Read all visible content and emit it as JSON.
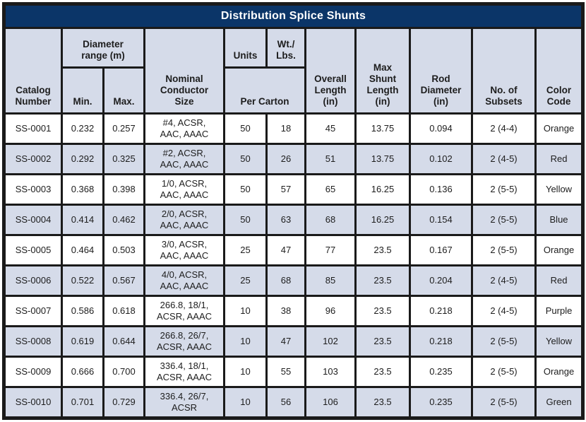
{
  "title": "Distribution Splice Shunts",
  "header": {
    "catalog": "Catalog\nNumber",
    "diameter_range": "Diameter\nrange (m)",
    "min": "Min.",
    "max": "Max.",
    "nominal": "Nominal\nConductor\nSize",
    "units": "Units",
    "wt": "Wt./\nLbs.",
    "per_carton": "Per Carton",
    "overall": "Overall\nLength\n(in)",
    "max_shunt": "Max\nShunt\nLength\n(in)",
    "rod": "Rod\nDiameter\n(in)",
    "subsets": "No. of\nSubsets",
    "color": "Color\nCode"
  },
  "column_keys": [
    "catalog",
    "min",
    "max",
    "conductor",
    "units",
    "wt",
    "overall",
    "max_shunt",
    "rod",
    "subsets",
    "color"
  ],
  "rows": [
    {
      "catalog": "SS-0001",
      "min": "0.232",
      "max": "0.257",
      "conductor": "#4, ACSR,\nAAC, AAAC",
      "units": "50",
      "wt": "18",
      "overall": "45",
      "max_shunt": "13.75",
      "rod": "0.094",
      "subsets": "2 (4-4)",
      "color": "Orange"
    },
    {
      "catalog": "SS-0002",
      "min": "0.292",
      "max": "0.325",
      "conductor": "#2, ACSR,\nAAC, AAAC",
      "units": "50",
      "wt": "26",
      "overall": "51",
      "max_shunt": "13.75",
      "rod": "0.102",
      "subsets": "2 (4-5)",
      "color": "Red"
    },
    {
      "catalog": "SS-0003",
      "min": "0.368",
      "max": "0.398",
      "conductor": "1/0, ACSR,\nAAC, AAAC",
      "units": "50",
      "wt": "57",
      "overall": "65",
      "max_shunt": "16.25",
      "rod": "0.136",
      "subsets": "2 (5-5)",
      "color": "Yellow"
    },
    {
      "catalog": "SS-0004",
      "min": "0.414",
      "max": "0.462",
      "conductor": "2/0, ACSR,\nAAC, AAAC",
      "units": "50",
      "wt": "63",
      "overall": "68",
      "max_shunt": "16.25",
      "rod": "0.154",
      "subsets": "2 (5-5)",
      "color": "Blue"
    },
    {
      "catalog": "SS-0005",
      "min": "0.464",
      "max": "0.503",
      "conductor": "3/0, ACSR,\nAAC, AAAC",
      "units": "25",
      "wt": "47",
      "overall": "77",
      "max_shunt": "23.5",
      "rod": "0.167",
      "subsets": "2 (5-5)",
      "color": "Orange"
    },
    {
      "catalog": "SS-0006",
      "min": "0.522",
      "max": "0.567",
      "conductor": "4/0, ACSR,\nAAC, AAAC",
      "units": "25",
      "wt": "68",
      "overall": "85",
      "max_shunt": "23.5",
      "rod": "0.204",
      "subsets": "2 (4-5)",
      "color": "Red"
    },
    {
      "catalog": "SS-0007",
      "min": "0.586",
      "max": "0.618",
      "conductor": "266.8, 18/1,\nACSR, AAAC",
      "units": "10",
      "wt": "38",
      "overall": "96",
      "max_shunt": "23.5",
      "rod": "0.218",
      "subsets": "2 (4-5)",
      "color": "Purple"
    },
    {
      "catalog": "SS-0008",
      "min": "0.619",
      "max": "0.644",
      "conductor": "266.8, 26/7,\nACSR, AAAC",
      "units": "10",
      "wt": "47",
      "overall": "102",
      "max_shunt": "23.5",
      "rod": "0.218",
      "subsets": "2 (5-5)",
      "color": "Yellow"
    },
    {
      "catalog": "SS-0009",
      "min": "0.666",
      "max": "0.700",
      "conductor": "336.4, 18/1,\nACSR, AAAC",
      "units": "10",
      "wt": "55",
      "overall": "103",
      "max_shunt": "23.5",
      "rod": "0.235",
      "subsets": "2 (5-5)",
      "color": "Orange"
    },
    {
      "catalog": "SS-0010",
      "min": "0.701",
      "max": "0.729",
      "conductor": "336.4, 26/7,\nACSR",
      "units": "10",
      "wt": "56",
      "overall": "106",
      "max_shunt": "23.5",
      "rod": "0.235",
      "subsets": "2 (5-5)",
      "color": "Green"
    }
  ],
  "colors": {
    "title_bar": "#0b3568",
    "title_text": "#ffffff",
    "shaded_row": "#d5dbe9",
    "border": "#1a1a1a",
    "text": "#1d1d1d"
  }
}
